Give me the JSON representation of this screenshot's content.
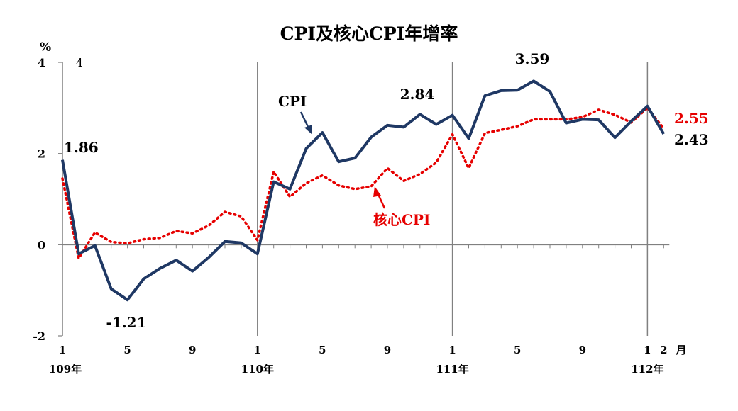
{
  "chart_data": {
    "type": "line",
    "title": "CPI及核心CPI年增率",
    "ylabel": "%",
    "xlabel": "月",
    "ylim": [
      -2,
      4
    ],
    "yticks": [
      "-2",
      "0",
      "2",
      "4"
    ],
    "ytick_extra": "4",
    "xtick_labels": [
      {
        "index": 0,
        "label": "1"
      },
      {
        "index": 4,
        "label": "5"
      },
      {
        "index": 8,
        "label": "9"
      },
      {
        "index": 12,
        "label": "1"
      },
      {
        "index": 16,
        "label": "5"
      },
      {
        "index": 20,
        "label": "9"
      },
      {
        "index": 24,
        "label": "1"
      },
      {
        "index": 28,
        "label": "5"
      },
      {
        "index": 32,
        "label": "9"
      },
      {
        "index": 36,
        "label": "1"
      },
      {
        "index": 37,
        "label": "2"
      }
    ],
    "year_labels": [
      {
        "index": 0,
        "label": "109年"
      },
      {
        "index": 12,
        "label": "110年"
      },
      {
        "index": 24,
        "label": "111年"
      },
      {
        "index": 36,
        "label": "112年"
      }
    ],
    "series": [
      {
        "name": "CPI",
        "color": "#1f3864",
        "style": "solid",
        "values": [
          1.86,
          -0.2,
          -0.02,
          -0.97,
          -1.21,
          -0.75,
          -0.52,
          -0.34,
          -0.58,
          -0.28,
          0.07,
          0.04,
          -0.2,
          1.38,
          1.22,
          2.11,
          2.46,
          1.82,
          1.9,
          2.36,
          2.62,
          2.58,
          2.86,
          2.64,
          2.84,
          2.33,
          3.27,
          3.38,
          3.39,
          3.59,
          3.36,
          2.67,
          2.75,
          2.74,
          2.35,
          2.71,
          3.04,
          2.43
        ]
      },
      {
        "name": "核心CPI",
        "color": "#e60000",
        "style": "dotted",
        "values": [
          1.45,
          -0.3,
          0.27,
          0.06,
          0.03,
          0.12,
          0.15,
          0.3,
          0.25,
          0.42,
          0.72,
          0.62,
          0.1,
          1.6,
          1.05,
          1.35,
          1.52,
          1.3,
          1.22,
          1.28,
          1.68,
          1.4,
          1.55,
          1.8,
          2.42,
          1.68,
          2.45,
          2.52,
          2.6,
          2.75,
          2.75,
          2.75,
          2.8,
          2.96,
          2.85,
          2.68,
          3.0,
          2.55
        ]
      }
    ],
    "annotations": [
      {
        "text": "1.86",
        "series": 0,
        "index": 0
      },
      {
        "text": "-1.21",
        "series": 0,
        "index": 4
      },
      {
        "text": "2.84",
        "series": 0,
        "index": 24
      },
      {
        "text": "3.59",
        "series": 0,
        "index": 29
      },
      {
        "text": "2.43",
        "series": 0,
        "index": 37
      },
      {
        "text": "2.55",
        "series": 1,
        "index": 37
      }
    ],
    "grid": false,
    "legend": "inline-arrows"
  }
}
